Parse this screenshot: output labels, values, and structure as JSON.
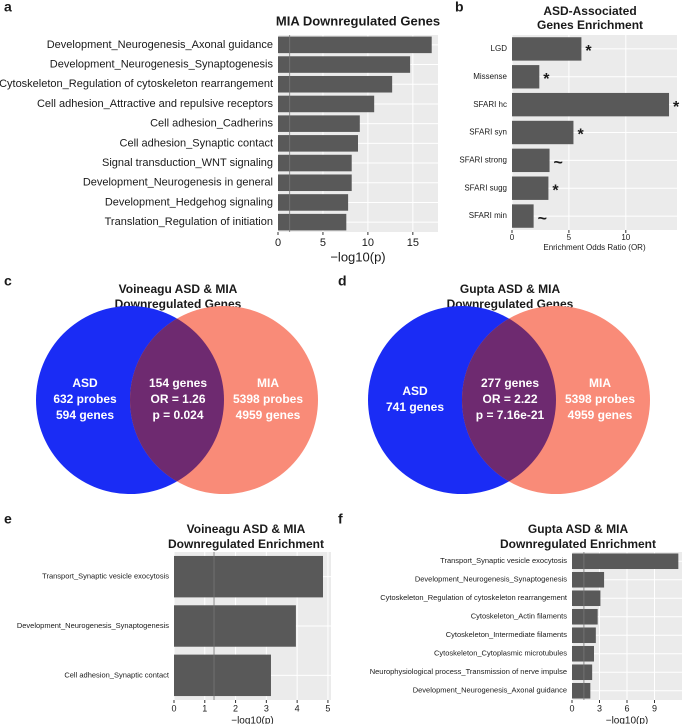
{
  "chart_data": [
    {
      "type": "hbar",
      "panel_label": "a",
      "title": [
        "MIA Downregulated Genes"
      ],
      "xlabel": "−log10(p)",
      "categories": [
        "Development_Neurogenesis_Axonal guidance",
        "Development_Neurogenesis_Synaptogenesis",
        "Cytoskeleton_Regulation of cytoskeleton rearrangement",
        "Cell adhesion_Attractive and repulsive receptors",
        "Cell adhesion_Cadherins",
        "Cell adhesion_Synaptic contact",
        "Signal transduction_WNT signaling",
        "Development_Neurogenesis in general",
        "Development_Hedgehog signaling",
        "Translation_Regulation of initiation"
      ],
      "values": [
        17.1,
        14.7,
        12.7,
        10.7,
        9.1,
        8.9,
        8.2,
        8.2,
        7.8,
        7.6
      ],
      "color": "#595959",
      "xlim": [
        0,
        17.8
      ],
      "xticks": [
        0,
        5,
        10,
        15
      ],
      "vline": 1.3
    },
    {
      "type": "hbar",
      "panel_label": "b",
      "title": [
        "ASD-Associated",
        "Genes Enrichment"
      ],
      "xlabel": "Enrichment Odds Ratio (OR)",
      "categories": [
        "LGD",
        "Missense",
        "SFARI hc",
        "SFARI syn",
        "SFARI strong",
        "SFARI sugg",
        "SFARI min"
      ],
      "values": [
        6.1,
        2.4,
        13.8,
        5.4,
        3.3,
        3.2,
        1.9
      ],
      "annotations": [
        "*",
        "*",
        "*",
        "*",
        "~",
        "*",
        "~"
      ],
      "color": "#595959",
      "xlim": [
        0,
        14.5
      ],
      "xticks": [
        0,
        5,
        10
      ]
    },
    {
      "type": "venn",
      "panel_label": "c",
      "title": [
        "Voineagu ASD & MIA",
        "Downregulated Genes"
      ],
      "sets": [
        {
          "name": "ASD",
          "color": "#1a2cf5",
          "lines": [
            "632 probes",
            "594 genes"
          ]
        },
        {
          "name": "MIA",
          "color": "#f98b78",
          "lines": [
            "5398 probes",
            "4959 genes"
          ]
        }
      ],
      "overlap": {
        "color": "#6e2a70",
        "lines": [
          "154 genes",
          "OR = 1.26",
          "p = 0.024"
        ]
      }
    },
    {
      "type": "venn",
      "panel_label": "d",
      "title": [
        "Gupta ASD & MIA",
        "Downregulated Genes"
      ],
      "sets": [
        {
          "name": "ASD",
          "color": "#1a2cf5",
          "lines": [
            "741 genes"
          ]
        },
        {
          "name": "MIA",
          "color": "#f98b78",
          "lines": [
            "5398 probes",
            "4959 genes"
          ]
        }
      ],
      "overlap": {
        "color": "#6e2a70",
        "lines": [
          "277 genes",
          "OR = 2.22",
          "p = 7.16e-21"
        ]
      }
    },
    {
      "type": "hbar",
      "panel_label": "e",
      "title": [
        "Voineagu ASD & MIA",
        "Downregulated Enrichment"
      ],
      "xlabel": "−log10(p)",
      "categories": [
        "Transport_Synaptic vesicle exocytosis",
        "Development_Neurogenesis_Synaptogenesis",
        "Cell adhesion_Synaptic contact"
      ],
      "values": [
        4.84,
        3.96,
        3.15
      ],
      "color": "#595959",
      "xlim": [
        0,
        5.1
      ],
      "xticks": [
        0,
        1,
        2,
        3,
        4,
        5
      ],
      "vline": 1.3
    },
    {
      "type": "hbar",
      "panel_label": "f",
      "title": [
        "Gupta ASD & MIA",
        "Downregulated Enrichment"
      ],
      "xlabel": "−log10(p)",
      "categories": [
        "Transport_Synaptic vesicle exocytosis",
        "Development_Neurogenesis_Synaptogenesis",
        "Cytoskeleton_Regulation of cytoskeleton rearrangement",
        "Cytoskeleton_Actin filaments",
        "Cytoskeleton_Intermediate filaments",
        "Cytoskeleton_Cytoplasmic microtubules",
        "Neurophysiological process_Transmission of nerve impulse",
        "Development_Neurogenesis_Axonal guidance"
      ],
      "values": [
        11.6,
        3.5,
        3.1,
        2.8,
        2.6,
        2.4,
        2.2,
        2.0
      ],
      "color": "#595959",
      "xlim": [
        0,
        12
      ],
      "xticks": [
        0,
        3,
        6,
        9
      ],
      "vline": 1.3
    }
  ]
}
